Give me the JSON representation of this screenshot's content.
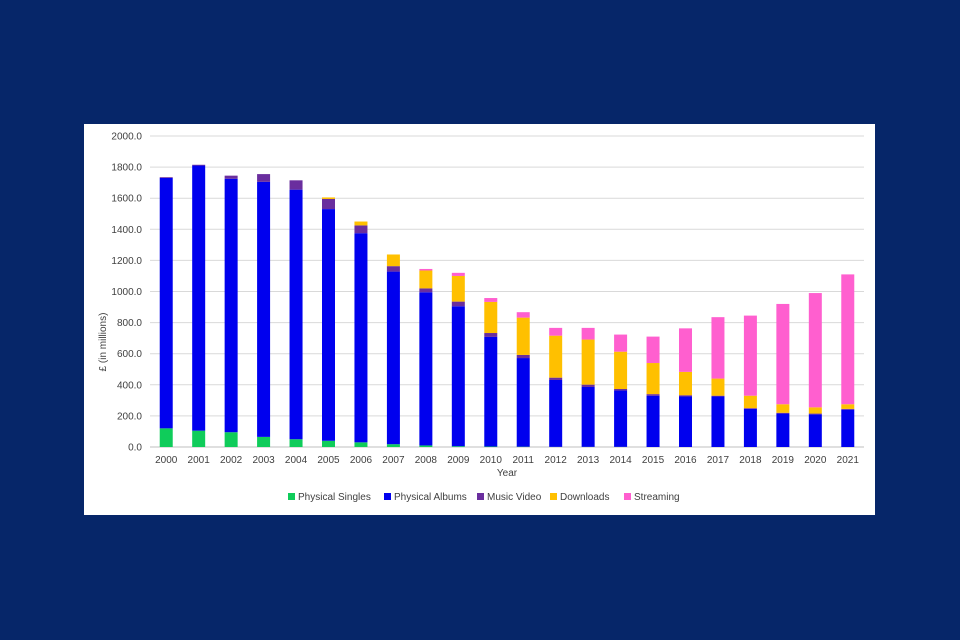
{
  "colors": {
    "background": "#062669",
    "panel": "#ffffff",
    "gridline": "#d9d9d9"
  },
  "chart_data": {
    "type": "bar",
    "stacked": true,
    "title": "",
    "xlabel": "Year",
    "ylabel": "£ (in millions)",
    "ylim": [
      0,
      2000
    ],
    "ytick_labels": [
      "0.0",
      "200.0",
      "400.0",
      "600.0",
      "800.0",
      "1000.0",
      "1200.0",
      "1400.0",
      "1600.0",
      "1800.0",
      "2000.0"
    ],
    "grid": true,
    "legend_position": "bottom",
    "categories": [
      "2000",
      "2001",
      "2002",
      "2003",
      "2004",
      "2005",
      "2006",
      "2007",
      "2008",
      "2009",
      "2010",
      "2011",
      "2012",
      "2013",
      "2014",
      "2015",
      "2016",
      "2017",
      "2018",
      "2019",
      "2020",
      "2021"
    ],
    "series": [
      {
        "name": "Physical Singles",
        "color": "#0fcc5a",
        "values": [
          120,
          105,
          95,
          65,
          50,
          40,
          30,
          18,
          10,
          5,
          3,
          2,
          1,
          1,
          1,
          0,
          0,
          0,
          0,
          0,
          0,
          0
        ]
      },
      {
        "name": "Physical Albums",
        "color": "#0000ee",
        "values": [
          1610,
          1705,
          1630,
          1640,
          1605,
          1490,
          1345,
          1110,
          985,
          900,
          705,
          570,
          430,
          385,
          362,
          330,
          325,
          325,
          245,
          215,
          210,
          240
        ]
      },
      {
        "name": "Music Video",
        "color": "#6a2e9e",
        "values": [
          5,
          5,
          20,
          50,
          60,
          65,
          50,
          35,
          25,
          30,
          25,
          20,
          15,
          15,
          10,
          10,
          8,
          5,
          5,
          5,
          5,
          5
        ]
      },
      {
        "name": "Downloads",
        "color": "#ffc000",
        "values": [
          0,
          0,
          0,
          0,
          0,
          10,
          25,
          75,
          115,
          165,
          200,
          240,
          270,
          290,
          240,
          200,
          150,
          110,
          80,
          55,
          40,
          30
        ]
      },
      {
        "name": "Streaming",
        "color": "#ff5fcf",
        "values": [
          0,
          0,
          0,
          0,
          0,
          0,
          0,
          0,
          10,
          20,
          25,
          35,
          50,
          75,
          110,
          170,
          280,
          395,
          515,
          645,
          735,
          835
        ]
      }
    ]
  }
}
